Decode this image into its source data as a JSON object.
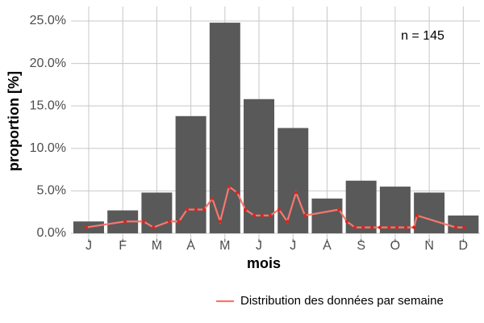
{
  "chart_data": {
    "type": "bar",
    "x_label": "mois",
    "y_label": "proportion [%]",
    "annotation": "n = 145",
    "categories": [
      "J",
      "F",
      "M",
      "A",
      "M",
      "J",
      "J",
      "A",
      "S",
      "O",
      "N",
      "D"
    ],
    "values": [
      1.4,
      2.7,
      4.8,
      13.8,
      24.8,
      15.8,
      12.4,
      4.1,
      6.2,
      5.5,
      4.8,
      2.1
    ],
    "color": "#595959",
    "ylim": [
      -0.67,
      26.71
    ],
    "yticks": [
      {
        "value": 0,
        "label": "0.0%"
      },
      {
        "value": 5,
        "label": "5.0%"
      },
      {
        "value": 10,
        "label": "10.0%"
      },
      {
        "value": 15,
        "label": "15.0%"
      },
      {
        "value": 20,
        "label": "20.0%"
      },
      {
        "value": 25,
        "label": "25.0%"
      }
    ],
    "xlim": [
      0.48,
      12.49
    ],
    "grid": true,
    "legend": "bottom-right",
    "overlay": {
      "type": "line",
      "name": "Distribution des données par semaine",
      "color": "#f8766d",
      "point_color": "#d7261e",
      "x": [
        0.93,
        2.07,
        2.61,
        2.9,
        3.37,
        3.65,
        3.89,
        4.15,
        4.39,
        4.63,
        4.86,
        5.12,
        5.36,
        5.6,
        5.86,
        6.09,
        6.33,
        6.59,
        6.83,
        7.09,
        7.35,
        8.35,
        8.58,
        8.82,
        9.06,
        9.32,
        9.55,
        9.82,
        10.05,
        10.31,
        10.55,
        10.64,
        11.78,
        12.02
      ],
      "values": [
        0.7,
        1.4,
        1.4,
        0.7,
        1.4,
        1.4,
        2.8,
        2.8,
        2.8,
        4.1,
        1.4,
        5.5,
        4.8,
        2.8,
        2.1,
        2.1,
        2.1,
        2.8,
        1.4,
        4.8,
        2.1,
        2.8,
        1.4,
        0.7,
        0.7,
        0.7,
        0.7,
        0.7,
        0.7,
        0.7,
        0.7,
        2.1,
        0.7,
        0.7
      ]
    }
  }
}
